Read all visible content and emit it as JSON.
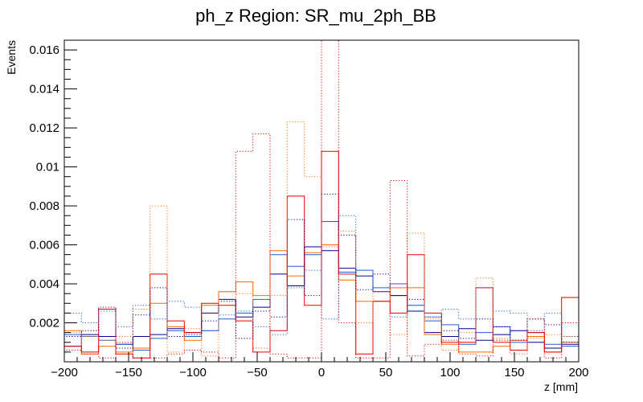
{
  "chart_data": {
    "type": "histogram",
    "title": "ph_z Region: SR_mu_2ph_BB",
    "xlabel": "z [mm]",
    "ylabel": "Events",
    "xlim": [
      -200,
      200
    ],
    "ylim": [
      0,
      0.0165
    ],
    "bin_edges": [
      -200,
      -186.7,
      -173.3,
      -160,
      -146.7,
      -133.3,
      -120,
      -106.7,
      -93.3,
      -80,
      -66.7,
      -53.3,
      -40,
      -26.7,
      -13.3,
      0,
      13.3,
      26.7,
      40,
      53.3,
      66.7,
      80,
      93.3,
      106.7,
      120,
      133.3,
      146.7,
      160,
      173.3,
      186.7,
      200
    ],
    "x_ticks": [
      -200,
      -150,
      -100,
      -50,
      0,
      50,
      100,
      150,
      200
    ],
    "x_tick_labels": [
      "−200",
      "−150",
      "−100",
      "−50",
      "0",
      "50",
      "100",
      "150",
      "200"
    ],
    "y_ticks": [
      0.002,
      0.004,
      0.006,
      0.008,
      0.01,
      0.012,
      0.014,
      0.016
    ],
    "y_tick_labels": [
      "0.002",
      "0.004",
      "0.006",
      "0.008",
      "0.01",
      "0.012",
      "0.014",
      "0.016"
    ],
    "grid": false,
    "series": [
      {
        "name": "navy-solid",
        "color": "#00008b",
        "style": "solid",
        "values": [
          0.0008,
          0.0014,
          0.0013,
          0.0009,
          0.0013,
          0.0014,
          0.0017,
          0.0015,
          0.0025,
          0.0032,
          0.0023,
          0.0028,
          0.0045,
          0.0039,
          0.0059,
          0.0057,
          0.0048,
          0.0044,
          0.0036,
          0.0034,
          0.0026,
          0.0015,
          0.0013,
          0.0017,
          0.0011,
          0.0014,
          0.0016,
          0.001,
          0.0007,
          0.0009
        ]
      },
      {
        "name": "blue-solid",
        "color": "#1f5fd2",
        "style": "solid",
        "values": [
          0.0014,
          0.0013,
          0.0011,
          0.0009,
          0.0006,
          0.0012,
          0.0016,
          0.0013,
          0.0016,
          0.0022,
          0.0025,
          0.0032,
          0.0055,
          0.0049,
          0.0055,
          0.0072,
          0.0046,
          0.0047,
          0.0038,
          0.004,
          0.0029,
          0.0021,
          0.0019,
          0.0009,
          0.0015,
          0.0018,
          0.001,
          0.0015,
          0.0009,
          0.0008
        ]
      },
      {
        "name": "orange-solid",
        "color": "#ff6a00",
        "style": "solid",
        "values": [
          0.0016,
          0.0004,
          0.0008,
          0.0005,
          0.0007,
          0.003,
          0.0018,
          0.0011,
          0.0029,
          0.0036,
          0.0041,
          0.0034,
          0.0057,
          0.0044,
          0.0056,
          0.006,
          0.0042,
          0.0031,
          0.0031,
          0.0038,
          0.0038,
          0.0014,
          0.0009,
          0.0005,
          0.0005,
          0.0008,
          0.0011,
          0.0013,
          0.0005,
          0.001
        ]
      },
      {
        "name": "red-solid",
        "color": "#e60000",
        "style": "solid",
        "values": [
          0.0008,
          0.0005,
          0.0027,
          0.0004,
          0.0002,
          0.0045,
          0.0021,
          0.0015,
          0.003,
          0.0029,
          0.0021,
          0.0005,
          0.0016,
          0.0085,
          0.0029,
          0.0108,
          0.0045,
          0.0004,
          0.0031,
          0.0025,
          0.0055,
          0.0025,
          0.001,
          0.001,
          0.0038,
          0.001,
          0.0006,
          0.0015,
          0.0005,
          0.0033
        ]
      },
      {
        "name": "navy-dotted",
        "color": "#00008b",
        "style": "dotted",
        "values": [
          0.0013,
          0.0016,
          0.0028,
          0.0007,
          0.0024,
          0.0038,
          0.0013,
          0.0014,
          0.0021,
          0.0031,
          0.0012,
          0.0026,
          0.0023,
          0.0073,
          0.0034,
          0.0086,
          0.0065,
          0.0037,
          0.0045,
          0.0034,
          0.0032,
          0.0023,
          0.0016,
          0.0012,
          0.0022,
          0.0018,
          0.0011,
          0.0022,
          0.0019,
          0.001
        ]
      },
      {
        "name": "blue-dotted",
        "color": "#1f5fd2",
        "style": "dotted",
        "values": [
          0.0025,
          0.002,
          0.0026,
          0.0018,
          0.0029,
          0.0022,
          0.0031,
          0.0028,
          0.0016,
          0.0024,
          0.0026,
          0.0018,
          0.0014,
          0.0038,
          0.0047,
          0.0022,
          0.0075,
          0.0044,
          0.0036,
          0.0023,
          0.0029,
          0.0023,
          0.0027,
          0.0022,
          0.0038,
          0.0026,
          0.0025,
          0.0016,
          0.0025,
          0.0013
        ]
      },
      {
        "name": "orange-dotted",
        "color": "#ff6a00",
        "style": "dotted",
        "values": [
          0.0015,
          0.0013,
          0.0011,
          0.0013,
          0.0027,
          0.008,
          0.0005,
          0.0017,
          0.0003,
          0.0036,
          0.0035,
          0.0007,
          0.0034,
          0.0123,
          0.0095,
          0.0059,
          0.0067,
          0.002,
          0.0036,
          0.0014,
          0.0066,
          0.0022,
          0.0006,
          0.0015,
          0.0043,
          0.0012,
          0.0004,
          0.0012,
          0.0014,
          0.0013
        ]
      },
      {
        "name": "red-dotted",
        "color": "#e60000",
        "style": "dotted",
        "values": [
          0.0006,
          0.0004,
          0.0002,
          0.001,
          0.0002,
          0.0002,
          0.0004,
          0.0006,
          0.0005,
          0.0002,
          0.0108,
          0.0117,
          0.0004,
          0.0002,
          0.0002,
          0.0165,
          0.002,
          0.0002,
          0.0002,
          0.0093,
          0.0003,
          0.0009,
          0.0011,
          0.0004,
          0.0003,
          0.0011,
          0.0011,
          0.0022,
          0.0002,
          0.002
        ]
      }
    ]
  }
}
